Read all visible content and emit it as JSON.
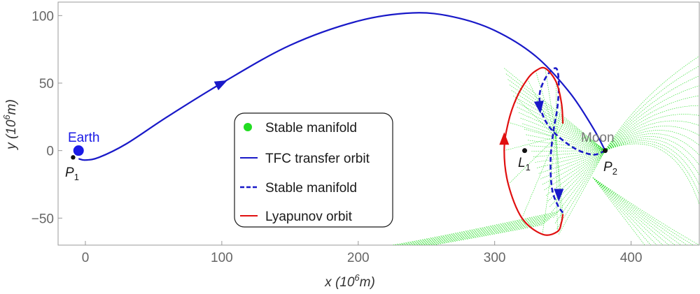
{
  "chart_data": {
    "type": "line",
    "xlabel": "x (10",
    "xlabel_exp": "6",
    "xlabel_unit": "m)",
    "ylabel": "y (10",
    "ylabel_exp": "6",
    "ylabel_unit": "m)",
    "xlim": [
      -20,
      450
    ],
    "ylim": [
      -70,
      110
    ],
    "xticks": [
      0,
      100,
      200,
      300,
      400
    ],
    "yticks": [
      -50,
      0,
      50,
      100
    ],
    "xtick_labels": [
      "0",
      "100",
      "200",
      "300",
      "400"
    ],
    "ytick_labels": [
      "−50",
      "0",
      "50",
      "100"
    ],
    "legend_position": "center",
    "colors": {
      "stable_manifold_region": "#22dd22",
      "transfer": "#1919c8",
      "stable_manifold_path": "#1919c8",
      "lyapunov": "#e01010",
      "moon_label": "#777777",
      "earth": "#1a1ae6"
    },
    "legend": [
      {
        "label": "Stable manifold",
        "marker": "dot",
        "color": "#22dd22"
      },
      {
        "label": "TFC transfer orbit",
        "marker": "solid",
        "color": "#1919c8"
      },
      {
        "label": "Stable manifold",
        "marker": "dashed",
        "color": "#1919c8"
      },
      {
        "label": "Lyapunov orbit",
        "marker": "solid",
        "color": "#e01010"
      }
    ],
    "annotations": {
      "earth": "Earth",
      "moon": "Moon",
      "p1_base": "P",
      "p1_sub": "1",
      "p2_base": "P",
      "p2_sub": "2",
      "l1_base": "L",
      "l1_sub": "1"
    },
    "points": {
      "earth": [
        -5,
        0
      ],
      "p1": [
        -9,
        -5
      ],
      "p2": [
        381,
        0
      ],
      "l1": [
        322,
        0
      ]
    },
    "series": [
      {
        "name": "TFC transfer orbit",
        "style": "solid",
        "x": [
          -5,
          0,
          10,
          30,
          60,
          100,
          150,
          200,
          240,
          270,
          300,
          330,
          355,
          372,
          381
        ],
        "y": [
          -6,
          -7,
          -5,
          5,
          25,
          50,
          78,
          96,
          102,
          99,
          89,
          70,
          43,
          17,
          0
        ]
      },
      {
        "name": "Stable manifold",
        "style": "dashed",
        "x": [
          381,
          372,
          358,
          343,
          335,
          333,
          338,
          345,
          347,
          346,
          343,
          341,
          342,
          346,
          350
        ],
        "y": [
          0,
          -3,
          2,
          14,
          27,
          42,
          55,
          61,
          50,
          32,
          14,
          -7,
          -28,
          -40,
          -46
        ]
      },
      {
        "name": "Lyapunov orbit",
        "style": "solid",
        "x": [
          350,
          349,
          346,
          335,
          320,
          310,
          307,
          310,
          316,
          324,
          330,
          337,
          345,
          349,
          350
        ],
        "y": [
          -47,
          -53,
          -60,
          -62,
          -50,
          -25,
          0,
          21,
          39,
          53,
          59,
          61,
          51,
          35,
          20
        ]
      }
    ],
    "arrows": [
      {
        "series": "TFC transfer orbit",
        "at": [
          100,
          50
        ],
        "toward": [
          106,
          53
        ]
      },
      {
        "series": "Stable manifold",
        "at": [
          333,
          32
        ],
        "toward": [
          334,
          24
        ]
      },
      {
        "series": "Stable manifold",
        "at": [
          347,
          -33
        ],
        "toward": [
          347,
          -43
        ]
      },
      {
        "series": "Lyapunov orbit",
        "at": [
          307,
          9
        ],
        "toward": [
          307,
          16
        ]
      }
    ]
  }
}
